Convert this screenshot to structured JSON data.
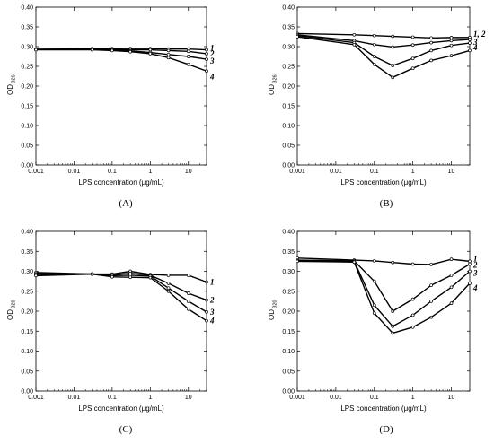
{
  "chart_data": [
    {
      "type": "line",
      "panel_label": "(A)",
      "xlabel": "LPS concentration (μg/mL)",
      "ylabel_base": "OD",
      "ylabel_sub": "326",
      "xscale": "log",
      "xlim": [
        0.001,
        30
      ],
      "ylim": [
        0,
        0.4
      ],
      "xticks": [
        "0.001",
        "0.01",
        "0.1",
        "1",
        "10"
      ],
      "yticks": [
        "0.00",
        "0.05",
        "0.10",
        "0.15",
        "0.20",
        "0.25",
        "0.30",
        "0.35",
        "0.40"
      ],
      "x": [
        0.001,
        0.03,
        0.1,
        0.3,
        1,
        3,
        10,
        30
      ],
      "series": [
        {
          "name": "1",
          "values": [
            0.293,
            0.295,
            0.295,
            0.295,
            0.295,
            0.294,
            0.294,
            0.292
          ]
        },
        {
          "name": "2",
          "values": [
            0.293,
            0.294,
            0.293,
            0.292,
            0.292,
            0.29,
            0.288,
            0.282
          ]
        },
        {
          "name": "3",
          "values": [
            0.293,
            0.293,
            0.291,
            0.289,
            0.285,
            0.28,
            0.275,
            0.268
          ]
        },
        {
          "name": "4",
          "values": [
            0.292,
            0.292,
            0.29,
            0.287,
            0.282,
            0.272,
            0.255,
            0.238
          ]
        }
      ]
    },
    {
      "type": "line",
      "panel_label": "(B)",
      "xlabel": "LPS concentration (μg/mL)",
      "ylabel_base": "OD",
      "ylabel_sub": "326",
      "xscale": "log",
      "xlim": [
        0.001,
        30
      ],
      "ylim": [
        0,
        0.4
      ],
      "xticks": [
        "0.001",
        "0.01",
        "0.1",
        "1",
        "10"
      ],
      "yticks": [
        "0.00",
        "0.05",
        "0.10",
        "0.15",
        "0.20",
        "0.25",
        "0.30",
        "0.35",
        "0.40"
      ],
      "x": [
        0.001,
        0.03,
        0.1,
        0.3,
        1,
        3,
        10,
        30
      ],
      "series": [
        {
          "name": "1, 2",
          "values": [
            0.333,
            0.33,
            0.328,
            0.326,
            0.324,
            0.322,
            0.323,
            0.323
          ]
        },
        {
          "name": "3",
          "values": [
            0.33,
            0.315,
            0.305,
            0.299,
            0.304,
            0.31,
            0.315,
            0.318
          ]
        },
        {
          "name": "4",
          "values": [
            0.328,
            0.31,
            0.275,
            0.252,
            0.27,
            0.29,
            0.303,
            0.309
          ]
        },
        {
          "name": "",
          "values": [
            0.325,
            0.305,
            0.255,
            0.222,
            0.245,
            0.265,
            0.277,
            0.29
          ]
        }
      ]
    },
    {
      "type": "line",
      "panel_label": "(C)",
      "xlabel": "LPS concentration (μg/mL)",
      "ylabel_base": "OD",
      "ylabel_sub": "320",
      "xscale": "log",
      "xlim": [
        0.001,
        30
      ],
      "ylim": [
        0,
        0.4
      ],
      "xticks": [
        "0.001",
        "0.01",
        "0.1",
        "1",
        "10"
      ],
      "yticks": [
        "0.00",
        "0.05",
        "0.10",
        "0.15",
        "0.20",
        "0.25",
        "0.30",
        "0.35",
        "0.40"
      ],
      "x": [
        0.001,
        0.03,
        0.1,
        0.3,
        1,
        3,
        10,
        30
      ],
      "series": [
        {
          "name": "1",
          "values": [
            0.297,
            0.293,
            0.293,
            0.3,
            0.292,
            0.29,
            0.29,
            0.273
          ]
        },
        {
          "name": "2",
          "values": [
            0.294,
            0.293,
            0.291,
            0.295,
            0.29,
            0.27,
            0.245,
            0.228
          ]
        },
        {
          "name": "3",
          "values": [
            0.292,
            0.293,
            0.289,
            0.29,
            0.288,
            0.258,
            0.225,
            0.198
          ]
        },
        {
          "name": "4",
          "values": [
            0.289,
            0.293,
            0.286,
            0.285,
            0.284,
            0.25,
            0.205,
            0.176
          ]
        }
      ]
    },
    {
      "type": "line",
      "panel_label": "(D)",
      "xlabel": "LPS concentration (μg/mL)",
      "ylabel_base": "OD",
      "ylabel_sub": "320",
      "xscale": "log",
      "xlim": [
        0.001,
        30
      ],
      "ylim": [
        0,
        0.4
      ],
      "xticks": [
        "0.001",
        "0.01",
        "0.1",
        "1",
        "10"
      ],
      "yticks": [
        "0.00",
        "0.05",
        "0.10",
        "0.15",
        "0.20",
        "0.25",
        "0.30",
        "0.35",
        "0.40"
      ],
      "x": [
        0.001,
        0.03,
        0.1,
        0.3,
        1,
        3,
        10,
        30
      ],
      "series": [
        {
          "name": "1",
          "values": [
            0.333,
            0.328,
            0.326,
            0.322,
            0.318,
            0.317,
            0.33,
            0.325
          ]
        },
        {
          "name": "2",
          "values": [
            0.328,
            0.326,
            0.275,
            0.2,
            0.23,
            0.265,
            0.29,
            0.318
          ]
        },
        {
          "name": "3",
          "values": [
            0.326,
            0.325,
            0.215,
            0.162,
            0.19,
            0.225,
            0.26,
            0.3
          ]
        },
        {
          "name": "4",
          "values": [
            0.325,
            0.323,
            0.195,
            0.145,
            0.16,
            0.185,
            0.22,
            0.27
          ]
        }
      ]
    }
  ]
}
